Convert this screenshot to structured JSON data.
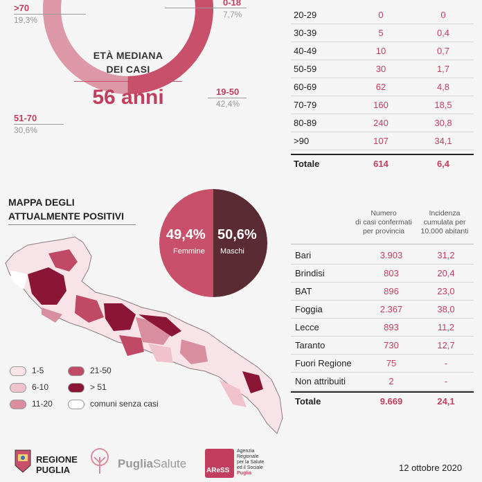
{
  "donut": {
    "segments": [
      {
        "label": "0-18",
        "pct": "7,7%",
        "value": 7.7,
        "color": "#5b2b33"
      },
      {
        "label": "19-50",
        "pct": "42,4%",
        "value": 42.4,
        "color": "#c8506b"
      },
      {
        "label": "51-70",
        "pct": "30,6%",
        "value": 30.6,
        "color": "#dc98a7"
      },
      {
        "label": ">70",
        "pct": "19,3%",
        "value": 19.3,
        "color": "#efd2d8"
      }
    ],
    "center_title_line1": "ETÀ MEDIANA",
    "center_title_line2": "DEI CASI",
    "center_value": "56 anni"
  },
  "age_table": {
    "rows": [
      {
        "age": "20-29",
        "cases": "0",
        "incidence": "0"
      },
      {
        "age": "30-39",
        "cases": "5",
        "incidence": "0,4"
      },
      {
        "age": "40-49",
        "cases": "10",
        "incidence": "0,7"
      },
      {
        "age": "50-59",
        "cases": "30",
        "incidence": "1,7"
      },
      {
        "age": "60-69",
        "cases": "62",
        "incidence": "4,8"
      },
      {
        "age": "70-79",
        "cases": "160",
        "incidence": "18,5"
      },
      {
        "age": "80-89",
        "cases": "240",
        "incidence": "30,8"
      },
      {
        "age": ">90",
        "cases": "107",
        "incidence": "34,1"
      }
    ],
    "total": {
      "label": "Totale",
      "cases": "614",
      "incidence": "6,4"
    }
  },
  "map": {
    "title_line1": "MAPPA DEGLI",
    "title_line2": "ATTUALMENTE POSITIVI",
    "legend": [
      {
        "label": "1-5",
        "color": "#f8e4e8"
      },
      {
        "label": "6-10",
        "color": "#f0c3cc"
      },
      {
        "label": "11-20",
        "color": "#d98ea0"
      },
      {
        "label": "21-50",
        "color": "#c04a66"
      },
      {
        "label": "> 51",
        "color": "#8a1535"
      },
      {
        "label": "comuni senza casi",
        "color": "#ffffff"
      }
    ]
  },
  "gender": {
    "female_pct": "49,4%",
    "female_label": "Femmine",
    "female_value": 49.4,
    "female_color": "#c8506b",
    "male_pct": "50,6%",
    "male_label": "Maschi",
    "male_value": 50.6,
    "male_color": "#5b2b33"
  },
  "province_table": {
    "header_cases": "Numero di casi confermati per provincia",
    "header_cases_l1": "Numero",
    "header_cases_l2": "di casi confermati",
    "header_cases_l3": "per provincia",
    "header_inc_l1": "Incidenza",
    "header_inc_l2": "cumulata per",
    "header_inc_l3": "10.000 abitanti",
    "rows": [
      {
        "name": "Bari",
        "cases": "3.903",
        "incidence": "31,2"
      },
      {
        "name": "Brindisi",
        "cases": "803",
        "incidence": "20,4"
      },
      {
        "name": "BAT",
        "cases": "896",
        "incidence": "23,0"
      },
      {
        "name": "Foggia",
        "cases": "2.367",
        "incidence": "38,0"
      },
      {
        "name": "Lecce",
        "cases": "893",
        "incidence": "11,2"
      },
      {
        "name": "Taranto",
        "cases": "730",
        "incidence": "12,7"
      },
      {
        "name": "Fuori Regione",
        "cases": "75",
        "incidence": "-"
      },
      {
        "name": "Non attribuiti",
        "cases": "2",
        "incidence": "-"
      }
    ],
    "total": {
      "label": "Totale",
      "cases": "9.669",
      "incidence": "24,1"
    }
  },
  "footer": {
    "regione_l1": "REGIONE",
    "regione_l2": "PUGLIA",
    "puglia": "Puglia",
    "salute": "Salute",
    "aress_l1": "Agenzia",
    "aress_l2": "Regionale",
    "aress_l3": "per la Salute",
    "aress_l4": "ed il Sociale",
    "aress_l5": "Puglia",
    "aress_logo": "AReSS",
    "date": "12 ottobre 2020"
  }
}
